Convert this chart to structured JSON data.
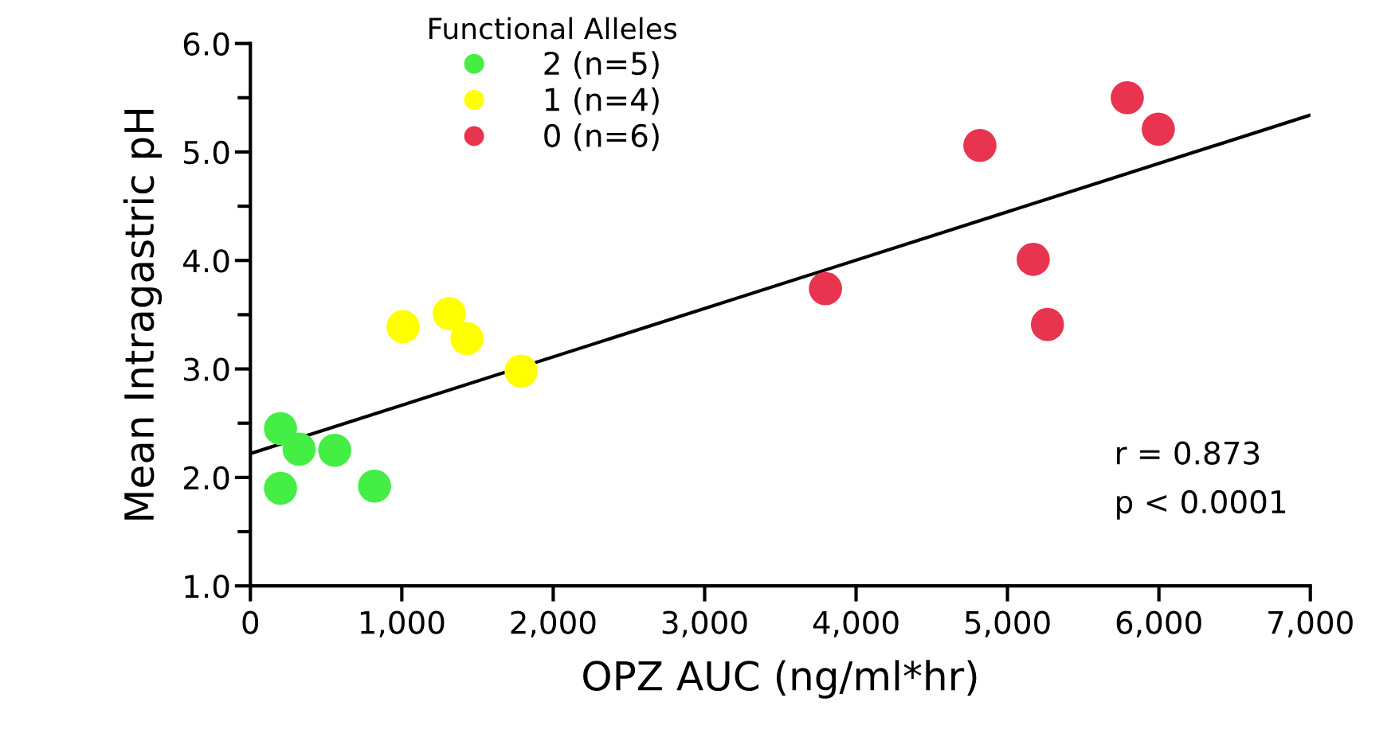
{
  "chart_data": {
    "type": "scatter",
    "xlabel": "OPZ AUC (ng/ml*hr)",
    "ylabel": "Mean Intragastric pH",
    "legend_title": "Functional Alleles",
    "legend": "top left",
    "marker": "circle",
    "grid": false,
    "xlim": [
      0,
      7000
    ],
    "ylim": [
      1.0,
      6.0
    ],
    "xticks": [
      0,
      {
        "value": 1000,
        "label": "1,000"
      },
      {
        "value": 2000,
        "label": "2,000"
      },
      {
        "value": 3000,
        "label": "3,000"
      },
      {
        "value": 4000,
        "label": "4,000"
      },
      {
        "value": 5000,
        "label": "5,000"
      },
      {
        "value": 6000,
        "label": "6,000"
      },
      {
        "value": 7000,
        "label": "7,000"
      }
    ],
    "yticks": [
      {
        "value": 1.0,
        "label": "1.0"
      },
      {
        "value": 1.5,
        "label": null
      },
      {
        "value": 2.0,
        "label": "2.0"
      },
      {
        "value": 2.5,
        "label": null
      },
      {
        "value": 3.0,
        "label": "3.0"
      },
      {
        "value": 3.5,
        "label": null
      },
      {
        "value": 4.0,
        "label": "4.0"
      },
      {
        "value": 4.5,
        "label": null
      },
      {
        "value": 5.0,
        "label": "5.0"
      },
      {
        "value": 5.5,
        "label": null
      },
      {
        "value": 6.0,
        "label": "6.0"
      }
    ],
    "series": [
      {
        "name": "2 (n=5)",
        "color": "#44ee44",
        "x": [
          199,
          322,
          557,
          199,
          820
        ],
        "values": [
          2.45,
          2.26,
          2.25,
          1.9,
          1.92
        ]
      },
      {
        "name": "1 (n=4)",
        "color": "#ffff00",
        "x": [
          1008,
          1313,
          1430,
          1788
        ],
        "values": [
          3.39,
          3.51,
          3.28,
          2.98
        ]
      },
      {
        "name": "0 (n=6)",
        "color": "#e8344e",
        "x": [
          3798,
          4818,
          5170,
          5264,
          5791,
          5996
        ],
        "values": [
          3.74,
          5.06,
          4.01,
          3.41,
          5.5,
          5.21
        ]
      },
      {
        "type": "line",
        "marker": "none",
        "color": "#000000",
        "x": [
          0,
          7000
        ],
        "values": [
          2.22,
          5.34
        ]
      }
    ],
    "annotations": [
      "r = 0.873",
      "p < 0.0001"
    ]
  }
}
